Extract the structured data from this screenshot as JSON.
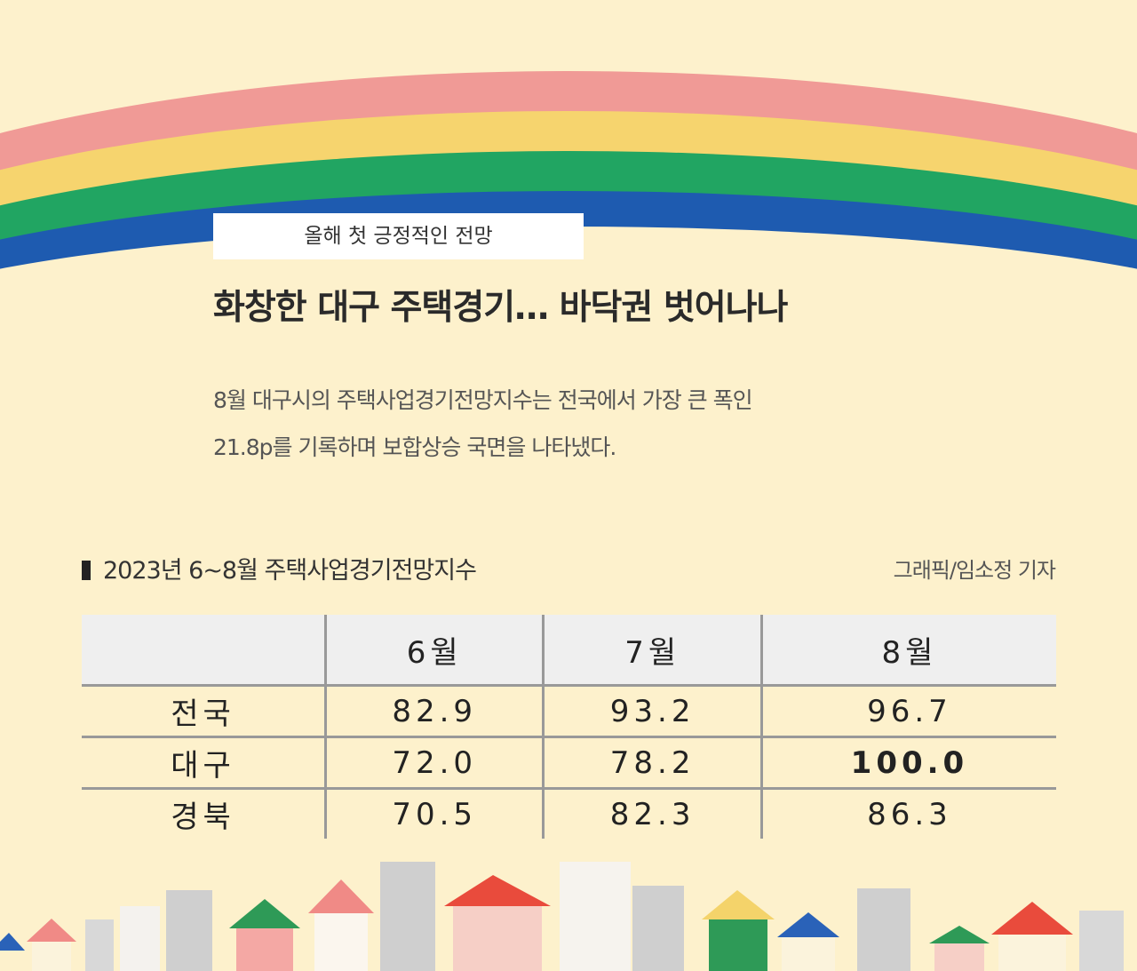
{
  "header": {
    "tag": "올해 첫 긍정적인 전망",
    "title": "화창한 대구 주택경기… 바닥권 벗어나나",
    "description": [
      "8월 대구시의 주택사업경기전망지수는 전국에서 가장 큰 폭인",
      "21.8p를 기록하며 보합상승 국면을 나타냈다."
    ]
  },
  "table": {
    "caption": "2023년 6~8월  주택사업경기전망지수",
    "credit": "그래픽/임소정 기자",
    "columns": [
      "6월",
      "7월",
      "8월"
    ],
    "rows": [
      {
        "label": "전국",
        "cells": [
          "82.9",
          "93.2",
          "96.7"
        ]
      },
      {
        "label": "대구",
        "cells": [
          "72.0",
          "78.2",
          "100.0"
        ]
      },
      {
        "label": "경북",
        "cells": [
          "70.5",
          "82.3",
          "86.3"
        ]
      }
    ]
  }
}
